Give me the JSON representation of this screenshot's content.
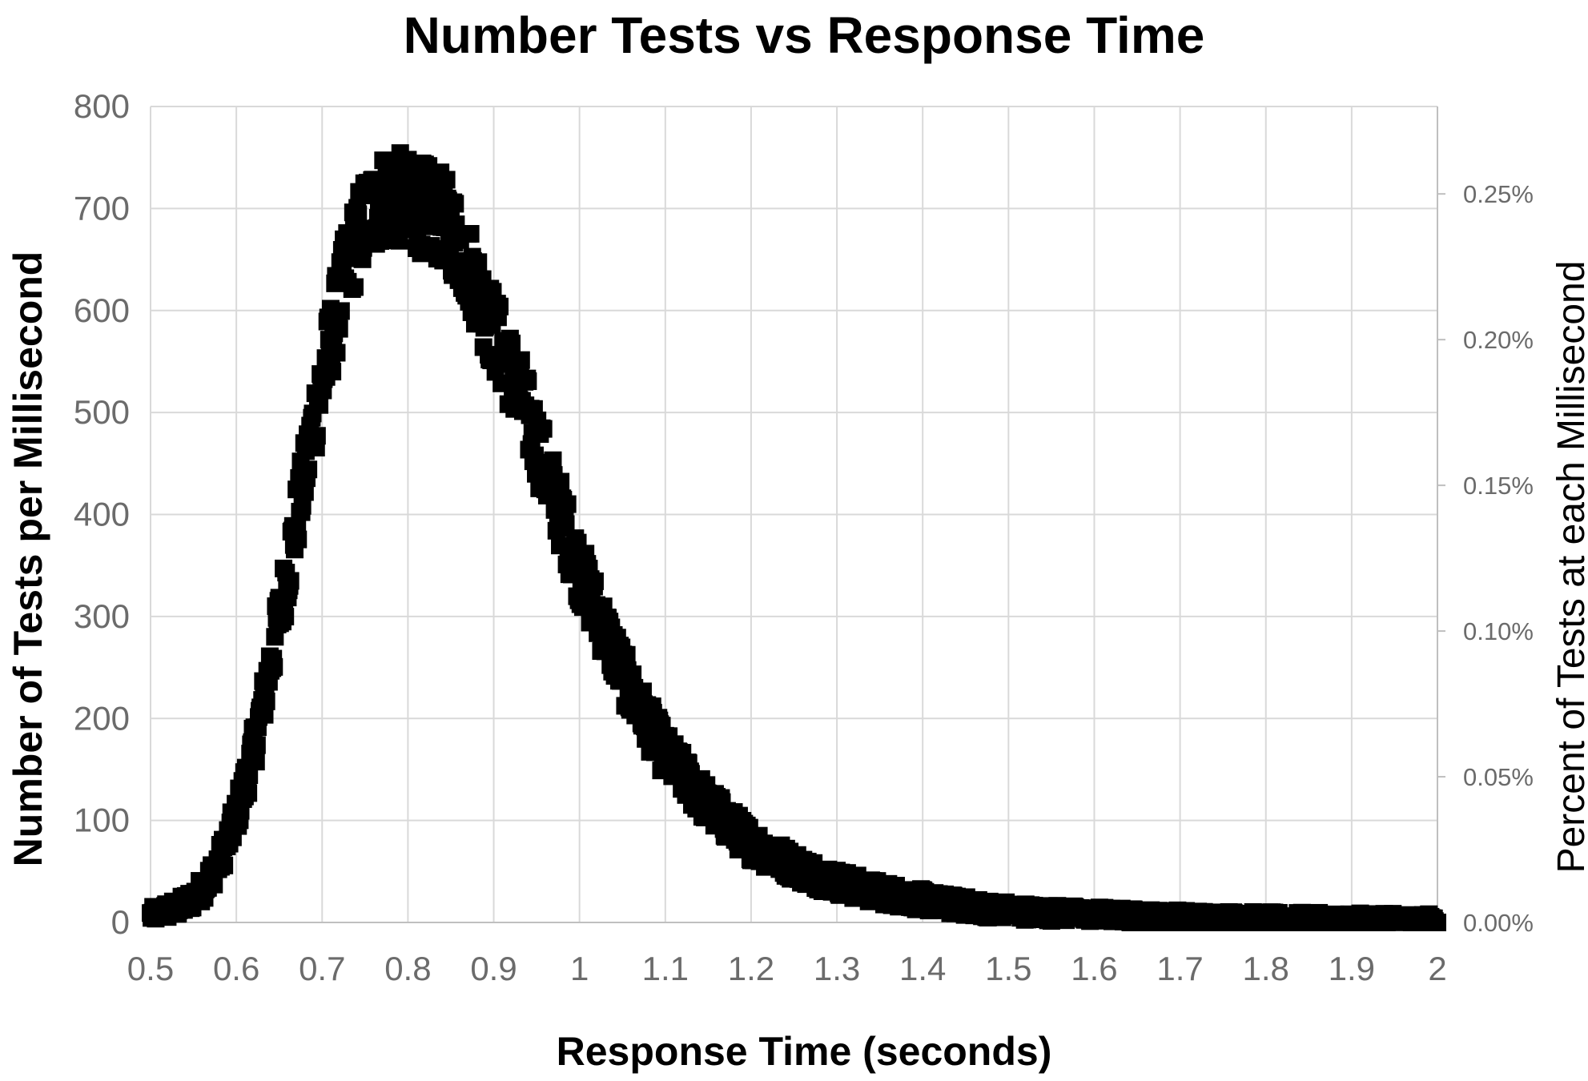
{
  "chart_data": {
    "type": "scatter",
    "title": "Number Tests vs Response Time",
    "xlabel": "Response Time (seconds)",
    "ylabel": "Number of Tests per Millisecond",
    "y2label": "Percent of Tests at each Millisecond",
    "xlim": [
      0.5,
      2.0
    ],
    "ylim": [
      0,
      800
    ],
    "y2lim": [
      0,
      0.0028
    ],
    "x_ticks": [
      "0.5",
      "0.6",
      "0.7",
      "0.8",
      "0.9",
      "1",
      "1.1",
      "1.2",
      "1.3",
      "1.4",
      "1.5",
      "1.6",
      "1.7",
      "1.8",
      "1.9",
      "2"
    ],
    "x_tick_values": [
      0.5,
      0.6,
      0.7,
      0.8,
      0.9,
      1.0,
      1.1,
      1.2,
      1.3,
      1.4,
      1.5,
      1.6,
      1.7,
      1.8,
      1.9,
      2.0
    ],
    "y_ticks": [
      "0",
      "100",
      "200",
      "300",
      "400",
      "500",
      "600",
      "700",
      "800"
    ],
    "y_tick_values": [
      0,
      100,
      200,
      300,
      400,
      500,
      600,
      700,
      800
    ],
    "y2_ticks": [
      "0.00%",
      "0.05%",
      "0.10%",
      "0.15%",
      "0.20%",
      "0.25%"
    ],
    "y2_tick_values": [
      0,
      0.0005,
      0.001,
      0.0015,
      0.002,
      0.0025
    ],
    "grid": true,
    "marker": "square",
    "marker_color": "#000000",
    "series": [
      {
        "x": [
          0.5,
          0.51,
          0.52,
          0.53,
          0.54,
          0.55,
          0.56,
          0.57,
          0.58,
          0.59,
          0.6,
          0.61,
          0.62,
          0.63,
          0.64,
          0.65,
          0.66,
          0.67,
          0.68,
          0.69,
          0.7,
          0.71,
          0.72,
          0.73,
          0.74,
          0.75,
          0.76,
          0.77,
          0.78,
          0.79,
          0.8,
          0.81,
          0.82,
          0.83,
          0.84,
          0.85,
          0.86,
          0.87,
          0.88,
          0.89,
          0.9,
          0.91,
          0.92,
          0.93,
          0.94,
          0.95,
          0.96,
          0.97,
          0.98,
          0.99,
          1.0,
          1.01,
          1.02,
          1.03,
          1.04,
          1.05,
          1.06,
          1.07,
          1.08,
          1.09,
          1.1,
          1.11,
          1.12,
          1.13,
          1.14,
          1.15,
          1.16,
          1.17,
          1.18,
          1.19,
          1.2,
          1.22,
          1.24,
          1.26,
          1.28,
          1.3,
          1.32,
          1.34,
          1.36,
          1.38,
          1.4,
          1.42,
          1.44,
          1.46,
          1.48,
          1.5,
          1.53,
          1.56,
          1.6,
          1.63,
          1.66,
          1.7,
          1.73,
          1.76,
          1.8,
          1.83,
          1.86,
          1.9,
          1.93,
          1.96,
          2.0
        ],
        "y": [
          7,
          10,
          12,
          14,
          18,
          24,
          33,
          45,
          60,
          80,
          105,
          135,
          170,
          210,
          255,
          300,
          345,
          395,
          440,
          490,
          530,
          570,
          610,
          645,
          670,
          690,
          700,
          710,
          712,
          710,
          705,
          702,
          700,
          695,
          690,
          680,
          665,
          645,
          625,
          600,
          580,
          560,
          540,
          520,
          495,
          470,
          445,
          420,
          395,
          370,
          345,
          325,
          305,
          285,
          265,
          245,
          225,
          210,
          195,
          180,
          165,
          155,
          145,
          135,
          125,
          115,
          108,
          100,
          92,
          85,
          78,
          68,
          60,
          52,
          45,
          40,
          35,
          31,
          28,
          25,
          22,
          19,
          17,
          15,
          13,
          12,
          10,
          9,
          8,
          7,
          6,
          5.5,
          5,
          4.5,
          4,
          3.8,
          3.5,
          3.2,
          3,
          2.8,
          2.6
        ]
      }
    ]
  }
}
